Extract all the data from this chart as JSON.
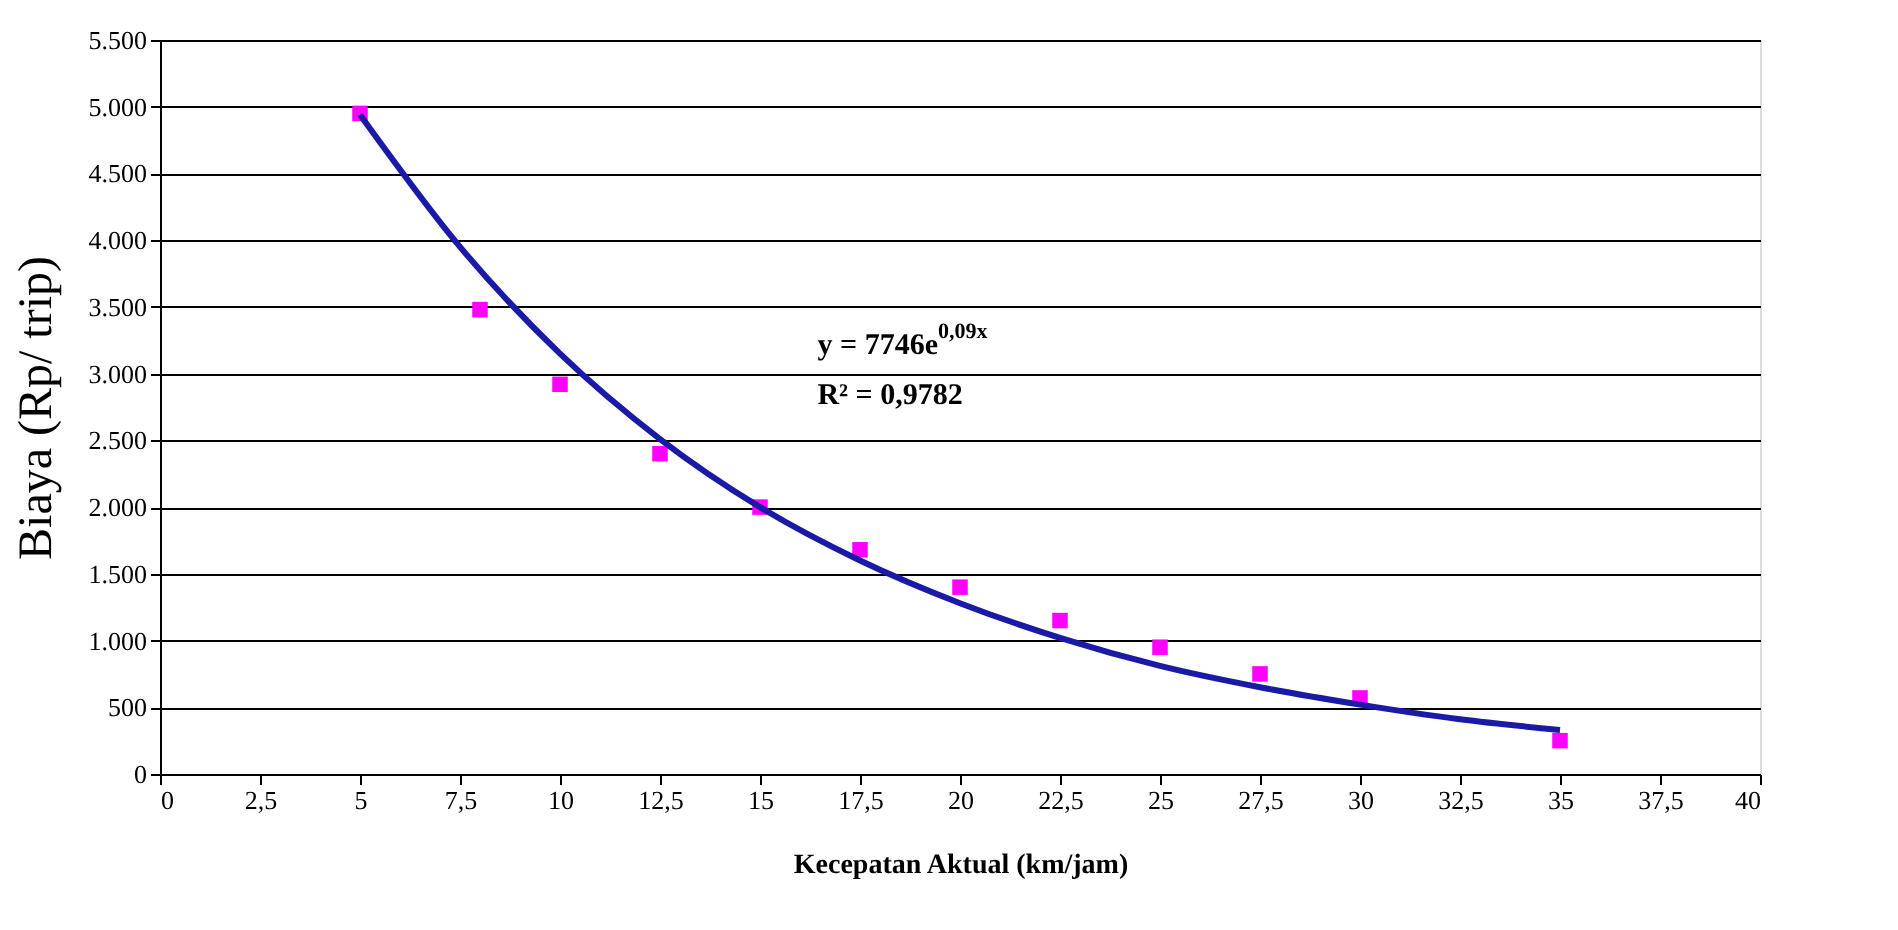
{
  "chart_data": {
    "type": "scatter",
    "xlabel": "Kecepatan Aktual (km/jam)",
    "ylabel": "Biaya (Rp/ trip)",
    "xlim": [
      0,
      40
    ],
    "ylim": [
      0,
      5500
    ],
    "xticks": [
      0,
      {
        "value": 2.5,
        "label": "2,5"
      },
      5,
      {
        "value": 7.5,
        "label": "7,5"
      },
      10,
      {
        "value": 12.5,
        "label": "12,5"
      },
      15,
      {
        "value": 17.5,
        "label": "17,5"
      },
      20,
      {
        "value": 22.5,
        "label": "22,5"
      },
      25,
      {
        "value": 27.5,
        "label": "27,5"
      },
      30,
      {
        "value": 32.5,
        "label": "32,5"
      },
      35,
      {
        "value": 37.5,
        "label": "37,5"
      },
      40
    ],
    "yticks": [
      0,
      500,
      {
        "value": 1000,
        "label": "1.000"
      },
      {
        "value": 1500,
        "label": "1.500"
      },
      {
        "value": 2000,
        "label": "2.000"
      },
      {
        "value": 2500,
        "label": "2.500"
      },
      {
        "value": 3000,
        "label": "3.000"
      },
      {
        "value": 3500,
        "label": "3.500"
      },
      {
        "value": 4000,
        "label": "4.000"
      },
      {
        "value": 4500,
        "label": "4.500"
      },
      {
        "value": 5000,
        "label": "5.000"
      },
      {
        "value": 5500,
        "label": "5.500"
      }
    ],
    "grid": "y",
    "series": [
      {
        "marker": "square",
        "color": "#ff00ff",
        "x": [
          5,
          8,
          10,
          12.5,
          15,
          17.5,
          20,
          22.5,
          25,
          27.5,
          30,
          35
        ],
        "values": [
          4950,
          3480,
          2920,
          2400,
          2000,
          1680,
          1400,
          1150,
          950,
          750,
          570,
          250
        ]
      },
      {
        "type": "line",
        "marker": "none",
        "line_style": "solid",
        "color": "#1a1aa6",
        "x": [
          5,
          7.5,
          10,
          12.5,
          15,
          17.5,
          20,
          22.5,
          25,
          27.5,
          30,
          32.5,
          35
        ],
        "values": [
          4940,
          3950,
          3150,
          2510,
          2000,
          1600,
          1280,
          1020,
          810,
          650,
          520,
          410,
          330
        ]
      }
    ],
    "annotations": [
      "y = 7746e$^{0,09x}$",
      "R² = 0,9782"
    ]
  }
}
